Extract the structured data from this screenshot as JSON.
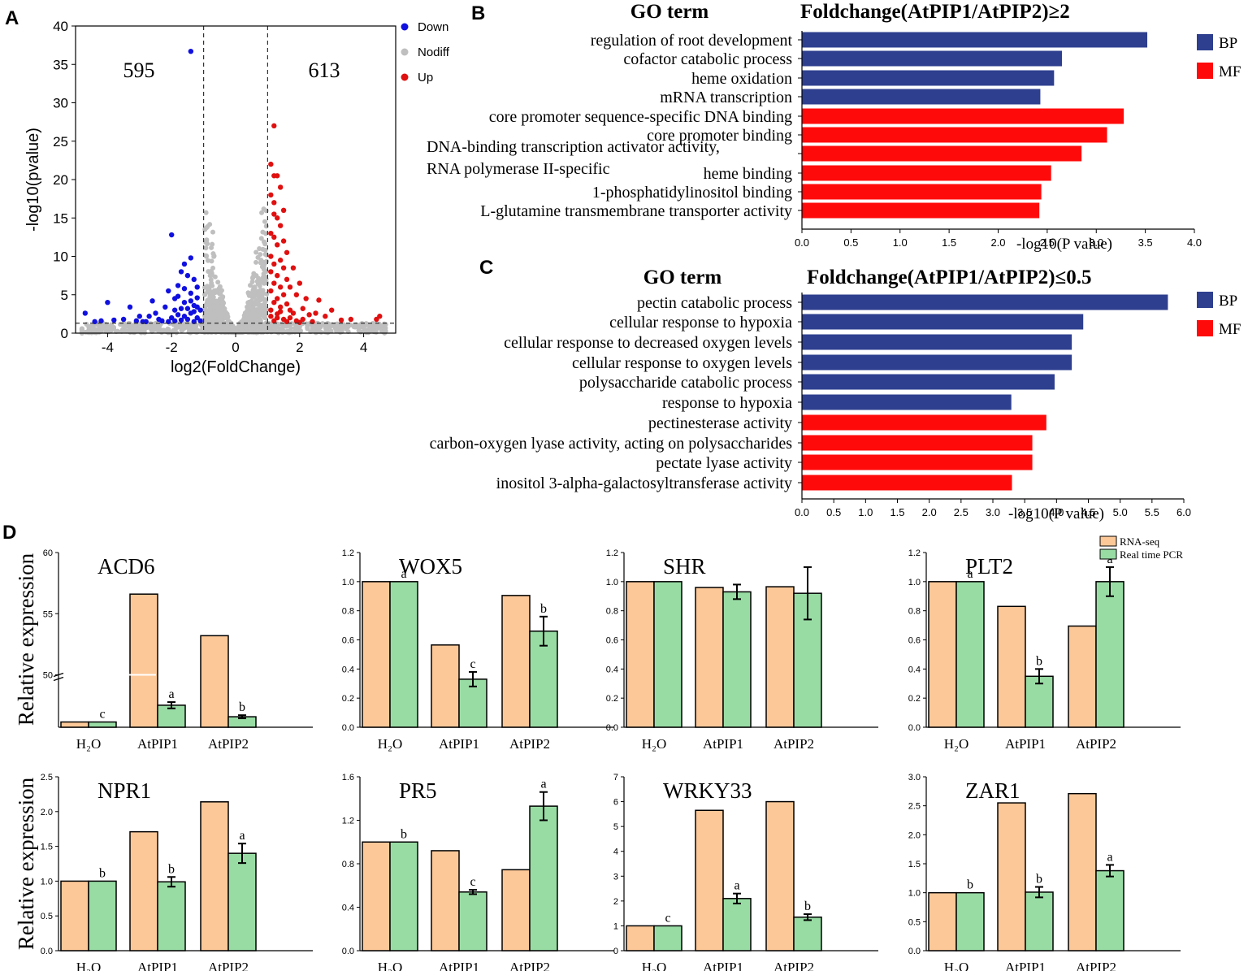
{
  "panel_labels": {
    "a": "A",
    "b": "B",
    "c": "C",
    "d": "D"
  },
  "chart_data": [
    {
      "id": "volcano",
      "type": "scatter",
      "title": "",
      "xlabel": "log2(FoldChange)",
      "ylabel": "-log10(pvalue)",
      "xlim": [
        -5,
        5
      ],
      "ylim": [
        0,
        40
      ],
      "xticks": [
        -4,
        -2,
        0,
        2,
        4
      ],
      "yticks": [
        0,
        5,
        10,
        15,
        20,
        25,
        30,
        35,
        40
      ],
      "thresholds": {
        "log2fc": [
          -1,
          1
        ],
        "neg_log10_p": 1.3
      },
      "counts": {
        "down": "595",
        "up": "613"
      },
      "legend": [
        {
          "label": "Down",
          "color": "#1010e0"
        },
        {
          "label": "Nodiff",
          "color": "#bfbfbf"
        },
        {
          "label": "Up",
          "color": "#e01010"
        }
      ],
      "down_points": [
        [
          -1.4,
          36.7
        ],
        [
          -2.0,
          12.8
        ],
        [
          -1.7,
          8.0
        ],
        [
          -1.6,
          9.0
        ],
        [
          -1.4,
          9.8
        ],
        [
          -1.5,
          7.5
        ],
        [
          -1.3,
          7.0
        ],
        [
          -1.8,
          6.2
        ],
        [
          -1.2,
          6.0
        ],
        [
          -2.1,
          5.5
        ],
        [
          -1.4,
          5.2
        ],
        [
          -1.9,
          4.5
        ],
        [
          -1.2,
          4.6
        ],
        [
          -1.6,
          4.0
        ],
        [
          -1.3,
          3.6
        ],
        [
          -2.2,
          3.4
        ],
        [
          -1.5,
          3.2
        ],
        [
          -4.0,
          4.0
        ],
        [
          -3.3,
          3.4
        ],
        [
          -2.6,
          4.2
        ],
        [
          -3.0,
          2.2
        ],
        [
          -2.5,
          2.6
        ],
        [
          -2.4,
          1.8
        ],
        [
          -3.5,
          1.8
        ],
        [
          -4.7,
          2.6
        ],
        [
          -4.2,
          1.6
        ],
        [
          -4.4,
          1.5
        ],
        [
          -3.8,
          1.7
        ],
        [
          -2.9,
          1.5
        ],
        [
          -2.0,
          2.0
        ],
        [
          -1.8,
          2.4
        ],
        [
          -1.6,
          2.2
        ],
        [
          -1.4,
          2.6
        ],
        [
          -1.2,
          2.0
        ],
        [
          -1.1,
          1.6
        ],
        [
          -1.3,
          1.5
        ],
        [
          -1.7,
          1.7
        ],
        [
          -1.9,
          1.6
        ],
        [
          -2.1,
          1.5
        ],
        [
          -2.3,
          1.6
        ],
        [
          -1.5,
          1.8
        ],
        [
          -1.1,
          3.0
        ],
        [
          -1.2,
          3.4
        ],
        [
          -1.9,
          3.0
        ],
        [
          -1.7,
          3.2
        ],
        [
          -2.7,
          2.2
        ],
        [
          -3.1,
          1.6
        ],
        [
          -2.8,
          1.5
        ],
        [
          -1.4,
          4.2
        ],
        [
          -1.8,
          4.8
        ],
        [
          -1.6,
          5.8
        ],
        [
          -1.3,
          2.8
        ]
      ],
      "up_points": [
        [
          1.2,
          27.0
        ],
        [
          1.1,
          22.0
        ],
        [
          1.2,
          20.5
        ],
        [
          1.3,
          20.5
        ],
        [
          1.4,
          19.0
        ],
        [
          1.1,
          18.0
        ],
        [
          1.2,
          17.0
        ],
        [
          1.5,
          16.0
        ],
        [
          1.2,
          15.5
        ],
        [
          1.3,
          15.0
        ],
        [
          1.4,
          14.0
        ],
        [
          1.1,
          13.0
        ],
        [
          1.5,
          12.0
        ],
        [
          1.2,
          12.5
        ],
        [
          1.3,
          11.5
        ],
        [
          1.6,
          10.5
        ],
        [
          1.1,
          10.0
        ],
        [
          1.4,
          9.5
        ],
        [
          1.2,
          9.0
        ],
        [
          1.5,
          8.5
        ],
        [
          1.8,
          8.5
        ],
        [
          1.1,
          8.0
        ],
        [
          1.3,
          7.5
        ],
        [
          1.6,
          7.0
        ],
        [
          1.2,
          6.5
        ],
        [
          2.0,
          6.5
        ],
        [
          1.4,
          6.0
        ],
        [
          1.7,
          6.0
        ],
        [
          1.1,
          5.5
        ],
        [
          1.5,
          5.0
        ],
        [
          1.9,
          5.0
        ],
        [
          1.3,
          4.5
        ],
        [
          2.2,
          4.5
        ],
        [
          2.6,
          4.3
        ],
        [
          1.2,
          4.0
        ],
        [
          1.6,
          3.8
        ],
        [
          2.1,
          3.2
        ],
        [
          3.0,
          3.0
        ],
        [
          2.5,
          2.6
        ],
        [
          1.1,
          3.0
        ],
        [
          1.4,
          2.8
        ],
        [
          1.8,
          2.6
        ],
        [
          2.3,
          2.4
        ],
        [
          2.8,
          2.2
        ],
        [
          3.3,
          1.7
        ],
        [
          3.6,
          1.8
        ],
        [
          4.5,
          2.2
        ],
        [
          4.4,
          1.8
        ],
        [
          1.1,
          2.2
        ],
        [
          1.3,
          2.0
        ],
        [
          1.5,
          1.8
        ],
        [
          1.7,
          2.0
        ],
        [
          1.9,
          1.6
        ],
        [
          2.1,
          1.8
        ],
        [
          1.2,
          1.6
        ],
        [
          1.6,
          1.5
        ],
        [
          2.4,
          1.5
        ],
        [
          2.0,
          1.4
        ],
        [
          1.4,
          3.4
        ],
        [
          1.7,
          3.0
        ],
        [
          1.3,
          2.5
        ]
      ]
    },
    {
      "id": "go_up",
      "type": "bar",
      "orientation": "horizontal",
      "title": "Foldchange(AtPIP1/AtPIP2)≥2",
      "header_left": "GO term",
      "xlabel": "-log10(P value)",
      "xlim": [
        0,
        4
      ],
      "xticks": [
        "0.0",
        "0.5",
        "1.0",
        "1.5",
        "2.0",
        "2.5",
        "3.0",
        "3.5",
        "4.0"
      ],
      "legend": [
        {
          "label": "BP",
          "color": "#2e3f8f"
        },
        {
          "label": "MF",
          "color": "#ff0a0a"
        }
      ],
      "categories": [
        "regulation of root development",
        "cofactor catabolic process",
        "heme oxidation",
        "mRNA transcription",
        "core promoter sequence-specific DNA binding",
        "core promoter binding",
        "DNA-binding transcription activator activity,",
        "RNA polymerase II-specific",
        "heme binding",
        "1-phosphatidylinositol binding",
        "L-glutamine transmembrane transporter activity"
      ],
      "values": [
        3.52,
        2.65,
        2.57,
        2.43,
        3.28,
        3.11,
        2.85,
        null,
        2.54,
        2.44,
        2.42
      ],
      "groups": [
        "BP",
        "BP",
        "BP",
        "BP",
        "MF",
        "MF",
        "MF",
        "MF",
        "MF",
        "MF",
        "MF"
      ]
    },
    {
      "id": "go_down",
      "type": "bar",
      "orientation": "horizontal",
      "title": "Foldchange(AtPIP1/AtPIP2)≤0.5",
      "header_left": "GO term",
      "xlabel": "-log10(P value)",
      "xlim": [
        0,
        6
      ],
      "xticks": [
        "0.0",
        "0.5",
        "1.0",
        "1.5",
        "2.0",
        "2.5",
        "3.0",
        "3.5",
        "4.0",
        "4.5",
        "5.0",
        "5.5",
        "6.0"
      ],
      "legend": [
        {
          "label": "BP",
          "color": "#2e3f8f"
        },
        {
          "label": "MF",
          "color": "#ff0a0a"
        }
      ],
      "categories": [
        "pectin catabolic process",
        "cellular response to hypoxia",
        "cellular response to decreased oxygen levels",
        "cellular response to oxygen levels",
        "polysaccharide catabolic process",
        "response to hypoxia",
        "pectinesterase activity",
        "carbon-oxygen lyase activity, acting on polysaccharides",
        "pectate lyase activity",
        "inositol 3-alpha-galactosyltransferase activity"
      ],
      "values": [
        5.75,
        4.42,
        4.24,
        4.24,
        3.97,
        3.29,
        3.84,
        3.62,
        3.62,
        3.3
      ],
      "groups": [
        "BP",
        "BP",
        "BP",
        "BP",
        "BP",
        "BP",
        "MF",
        "MF",
        "MF",
        "MF"
      ]
    },
    {
      "id": "expression",
      "type": "bar",
      "ylabel": "Relative expression",
      "categories": [
        "H₂O",
        "AtPIP1",
        "AtPIP2"
      ],
      "series_names": [
        "RNA-seq",
        "Real time PCR"
      ],
      "series_colors": [
        "#fdc898",
        "#98dca4"
      ],
      "genes": [
        {
          "name": "ACD6",
          "ylim": [
            0,
            60
          ],
          "broken": true,
          "yticks": [
            "",
            "",
            "",
            "50",
            "55",
            "60"
          ],
          "rna": [
            1,
            56.6,
            53.2
          ],
          "qpcr": [
            1,
            4.2,
            2.0
          ],
          "err": [
            0,
            0.6,
            0.3
          ],
          "letters": [
            "c",
            "a",
            "b"
          ]
        },
        {
          "name": "WOX5",
          "ylim": [
            0,
            1.2
          ],
          "yticks": [
            "0.0",
            "0.2",
            "0.4",
            "0.6",
            "0.8",
            "1.0",
            "1.2"
          ],
          "rna": [
            1,
            0.565,
            0.905
          ],
          "qpcr": [
            1,
            0.33,
            0.66
          ],
          "err": [
            0,
            0.05,
            0.1
          ],
          "letters": [
            "a",
            "c",
            "b"
          ]
        },
        {
          "name": "SHR",
          "ylim": [
            0,
            1.2
          ],
          "yticks": [
            "0.0",
            "0.2",
            "0.4",
            "0.6",
            "0.8",
            "1.0",
            "1.2"
          ],
          "rna": [
            1,
            0.96,
            0.965
          ],
          "qpcr": [
            1,
            0.93,
            0.92
          ],
          "err": [
            0,
            0.05,
            0.18
          ],
          "letters": [
            "",
            "",
            ""
          ]
        },
        {
          "name": "PLT2",
          "ylim": [
            0,
            1.2
          ],
          "yticks": [
            "0.0",
            "0.2",
            "0.4",
            "0.6",
            "0.8",
            "1.0",
            "1.2"
          ],
          "rna": [
            1,
            0.83,
            0.695
          ],
          "qpcr": [
            1,
            0.35,
            1.0
          ],
          "err": [
            0,
            0.05,
            0.1
          ],
          "letters": [
            "a",
            "b",
            "a"
          ]
        },
        {
          "name": "NPR1",
          "ylim": [
            0,
            2.5
          ],
          "yticks": [
            "0.0",
            "0.5",
            "1.0",
            "1.5",
            "2.0",
            "2.5"
          ],
          "rna": [
            1,
            1.71,
            2.14
          ],
          "qpcr": [
            1,
            0.99,
            1.4
          ],
          "err": [
            0,
            0.07,
            0.14
          ],
          "letters": [
            "b",
            "b",
            "a"
          ]
        },
        {
          "name": "PR5",
          "ylim": [
            0,
            1.6
          ],
          "yticks": [
            "0.0",
            "0.4",
            "0.8",
            "1.2",
            "1.6"
          ],
          "rna": [
            1,
            0.92,
            0.745
          ],
          "qpcr": [
            1,
            0.54,
            1.33
          ],
          "err": [
            0,
            0.02,
            0.13
          ],
          "letters": [
            "b",
            "c",
            "a"
          ]
        },
        {
          "name": "WRKY33",
          "ylim": [
            0,
            7
          ],
          "yticks": [
            "0",
            "1",
            "2",
            "3",
            "4",
            "5",
            "6",
            "7"
          ],
          "rna": [
            1,
            5.65,
            6.0
          ],
          "qpcr": [
            1,
            2.1,
            1.35
          ],
          "err": [
            0,
            0.2,
            0.12
          ],
          "letters": [
            "c",
            "a",
            "b"
          ]
        },
        {
          "name": "ZAR1",
          "ylim": [
            0,
            3
          ],
          "yticks": [
            "0.0",
            "0.5",
            "1.0",
            "1.5",
            "2.0",
            "2.5",
            "3.0"
          ],
          "rna": [
            1,
            2.55,
            2.71
          ],
          "qpcr": [
            1,
            1.01,
            1.38
          ],
          "err": [
            0,
            0.09,
            0.1
          ],
          "letters": [
            "b",
            "b",
            "a"
          ]
        }
      ]
    }
  ]
}
